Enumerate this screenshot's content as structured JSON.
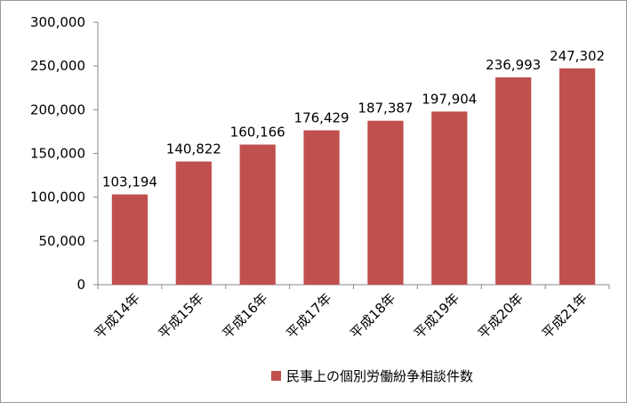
{
  "chart_data": {
    "type": "bar",
    "categories": [
      "平成14年",
      "平成15年",
      "平成16年",
      "平成17年",
      "平成18年",
      "平成19年",
      "平成20年",
      "平成21年"
    ],
    "series": [
      {
        "name": "民事上の個別労働紛争相談件数",
        "values": [
          103194,
          140822,
          160166,
          176429,
          187387,
          197904,
          236993,
          247302
        ],
        "data_labels": [
          "103,194",
          "140,822",
          "160,166",
          "176,429",
          "187,387",
          "197,904",
          "236,993",
          "247,302"
        ],
        "color": "#c0504d"
      }
    ],
    "ylim": [
      0,
      300000
    ],
    "yticks": [
      0,
      50000,
      100000,
      150000,
      200000,
      250000,
      300000
    ],
    "ytick_labels": [
      "0",
      "50,000",
      "100,000",
      "150,000",
      "200,000",
      "250,000",
      "300,000"
    ],
    "grid": false,
    "legend_position": "bottom-right"
  }
}
